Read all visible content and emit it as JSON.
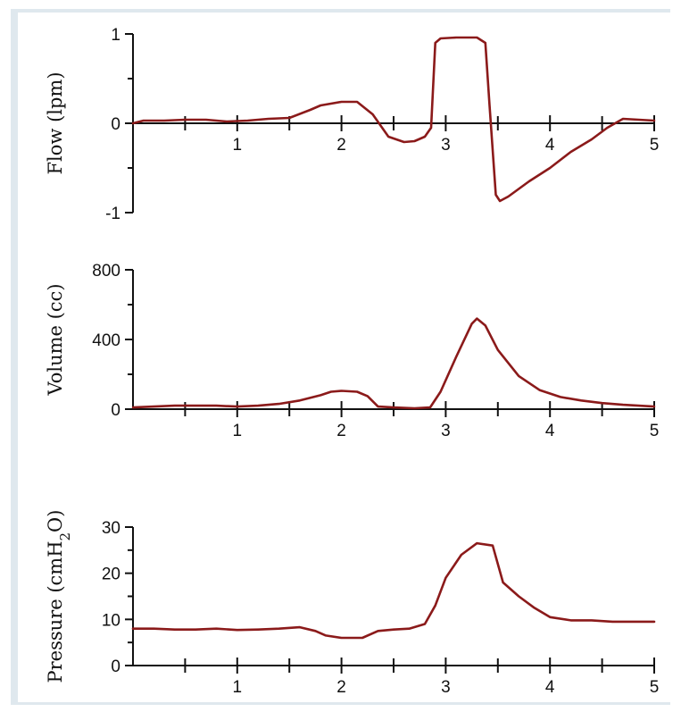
{
  "caption_strip": "",
  "chart_data": [
    {
      "type": "line",
      "title": "",
      "xlabel": "",
      "ylabel": "Flow (lpm)",
      "xlim": [
        0,
        5
      ],
      "ylim": [
        -1,
        1
      ],
      "xticks": [
        1,
        2,
        3,
        4,
        5
      ],
      "yticks": [
        -1,
        0,
        1
      ],
      "yminor": [
        -0.5,
        0.5
      ],
      "xminor": [
        0.5,
        1.5,
        2.5,
        3.5,
        4.5
      ],
      "line_color": "#8b1a1a",
      "series": [
        {
          "x": [
            0,
            0.1,
            0.3,
            0.5,
            0.7,
            0.9,
            1.1,
            1.3,
            1.5,
            1.7,
            1.8,
            2.0,
            2.15,
            2.3,
            2.45,
            2.6,
            2.7,
            2.8,
            2.86,
            2.9,
            2.95,
            3.1,
            3.3,
            3.38,
            3.42,
            3.48,
            3.52,
            3.6,
            3.8,
            4.0,
            4.2,
            4.4,
            4.55,
            4.7,
            5.0
          ],
          "y": [
            0,
            0.03,
            0.03,
            0.04,
            0.04,
            0.02,
            0.03,
            0.05,
            0.06,
            0.15,
            0.2,
            0.24,
            0.24,
            0.1,
            -0.15,
            -0.21,
            -0.2,
            -0.15,
            -0.05,
            0.9,
            0.95,
            0.96,
            0.96,
            0.9,
            0.2,
            -0.8,
            -0.87,
            -0.82,
            -0.65,
            -0.5,
            -0.32,
            -0.18,
            -0.05,
            0.05,
            0.03
          ]
        }
      ]
    },
    {
      "type": "line",
      "title": "",
      "xlabel": "",
      "ylabel": "Volume (cc)",
      "xlim": [
        0,
        5
      ],
      "ylim": [
        0,
        800
      ],
      "xticks": [
        1,
        2,
        3,
        4,
        5
      ],
      "yticks": [
        0,
        400,
        800
      ],
      "yminor": [
        200,
        600
      ],
      "xminor": [
        0.5,
        1.5,
        2.5,
        3.5,
        4.5
      ],
      "line_color": "#8b1a1a",
      "series": [
        {
          "x": [
            0,
            0.2,
            0.4,
            0.6,
            0.8,
            1.0,
            1.2,
            1.4,
            1.6,
            1.8,
            1.9,
            2.0,
            2.15,
            2.25,
            2.35,
            2.5,
            2.7,
            2.85,
            2.95,
            3.1,
            3.25,
            3.3,
            3.38,
            3.5,
            3.7,
            3.9,
            4.1,
            4.3,
            4.5,
            4.7,
            5.0
          ],
          "y": [
            10,
            15,
            20,
            20,
            20,
            15,
            20,
            30,
            50,
            80,
            100,
            105,
            100,
            75,
            15,
            10,
            5,
            10,
            100,
            300,
            490,
            520,
            480,
            340,
            190,
            110,
            70,
            50,
            35,
            25,
            15
          ]
        }
      ]
    },
    {
      "type": "line",
      "title": "",
      "xlabel": "",
      "ylabel": "Pressure (cmH2O)",
      "xlim": [
        0,
        5
      ],
      "ylim": [
        0,
        30
      ],
      "xticks": [
        1,
        2,
        3,
        4,
        5
      ],
      "yticks": [
        0,
        10,
        20,
        30
      ],
      "yminor": [
        5,
        15,
        25
      ],
      "xminor": [
        0.5,
        1.5,
        2.5,
        3.5,
        4.5
      ],
      "line_color": "#8b1a1a",
      "series": [
        {
          "x": [
            0,
            0.2,
            0.4,
            0.6,
            0.8,
            1.0,
            1.2,
            1.4,
            1.6,
            1.75,
            1.85,
            2.0,
            2.2,
            2.35,
            2.5,
            2.65,
            2.8,
            2.9,
            3.0,
            3.15,
            3.3,
            3.45,
            3.55,
            3.7,
            3.85,
            4.0,
            4.2,
            4.4,
            4.6,
            4.8,
            5.0
          ],
          "y": [
            8,
            8,
            7.8,
            7.8,
            8,
            7.7,
            7.8,
            8,
            8.3,
            7.5,
            6.5,
            6,
            6,
            7.5,
            7.8,
            8,
            9,
            13,
            19,
            24,
            26.5,
            26,
            18,
            15,
            12.5,
            10.5,
            9.8,
            9.8,
            9.5,
            9.5,
            9.5
          ]
        }
      ]
    }
  ]
}
